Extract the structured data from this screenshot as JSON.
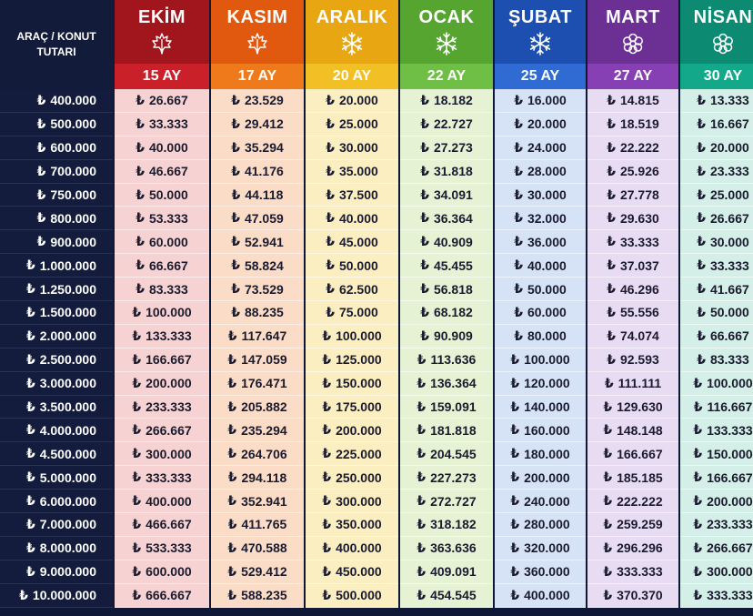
{
  "corner_label": "ARAÇ / KONUT TUTARI",
  "currency": "₺",
  "months": [
    {
      "name": "EKİM",
      "term": "15 AY",
      "icon": "leaf-icon",
      "head": "#a1151c",
      "term_bg": "#c9202a",
      "body": "#f6d3d2"
    },
    {
      "name": "KASIM",
      "term": "17 AY",
      "icon": "leaf-icon",
      "head": "#e0590f",
      "term_bg": "#ef7a1c",
      "body": "#fbdcc6"
    },
    {
      "name": "ARALIK",
      "term": "20 AY",
      "icon": "snowflake-icon",
      "head": "#e7a612",
      "term_bg": "#f2bf24",
      "body": "#fbeec0"
    },
    {
      "name": "OCAK",
      "term": "22 AY",
      "icon": "snowflake-icon",
      "head": "#55a530",
      "term_bg": "#6fbe45",
      "body": "#e6f2d4"
    },
    {
      "name": "ŞUBAT",
      "term": "25 AY",
      "icon": "snowflake-icon",
      "head": "#1d4fb0",
      "term_bg": "#2f6bd2",
      "body": "#d6e3f7"
    },
    {
      "name": "MART",
      "term": "27 AY",
      "icon": "flower-icon",
      "head": "#6c2f93",
      "term_bg": "#8740b3",
      "body": "#e8dcf3"
    },
    {
      "name": "NİSAN",
      "term": "30 AY",
      "icon": "flower-icon",
      "head": "#0d8a72",
      "term_bg": "#14a88b",
      "body": "#d3efe7"
    }
  ],
  "rows": [
    {
      "amount": "400.000",
      "values": [
        "26.667",
        "23.529",
        "20.000",
        "18.182",
        "16.000",
        "14.815",
        "13.333"
      ]
    },
    {
      "amount": "500.000",
      "values": [
        "33.333",
        "29.412",
        "25.000",
        "22.727",
        "20.000",
        "18.519",
        "16.667"
      ]
    },
    {
      "amount": "600.000",
      "values": [
        "40.000",
        "35.294",
        "30.000",
        "27.273",
        "24.000",
        "22.222",
        "20.000"
      ]
    },
    {
      "amount": "700.000",
      "values": [
        "46.667",
        "41.176",
        "35.000",
        "31.818",
        "28.000",
        "25.926",
        "23.333"
      ]
    },
    {
      "amount": "750.000",
      "values": [
        "50.000",
        "44.118",
        "37.500",
        "34.091",
        "30.000",
        "27.778",
        "25.000"
      ]
    },
    {
      "amount": "800.000",
      "values": [
        "53.333",
        "47.059",
        "40.000",
        "36.364",
        "32.000",
        "29.630",
        "26.667"
      ]
    },
    {
      "amount": "900.000",
      "values": [
        "60.000",
        "52.941",
        "45.000",
        "40.909",
        "36.000",
        "33.333",
        "30.000"
      ]
    },
    {
      "amount": "1.000.000",
      "values": [
        "66.667",
        "58.824",
        "50.000",
        "45.455",
        "40.000",
        "37.037",
        "33.333"
      ]
    },
    {
      "amount": "1.250.000",
      "values": [
        "83.333",
        "73.529",
        "62.500",
        "56.818",
        "50.000",
        "46.296",
        "41.667"
      ]
    },
    {
      "amount": "1.500.000",
      "values": [
        "100.000",
        "88.235",
        "75.000",
        "68.182",
        "60.000",
        "55.556",
        "50.000"
      ]
    },
    {
      "amount": "2.000.000",
      "values": [
        "133.333",
        "117.647",
        "100.000",
        "90.909",
        "80.000",
        "74.074",
        "66.667"
      ]
    },
    {
      "amount": "2.500.000",
      "values": [
        "166.667",
        "147.059",
        "125.000",
        "113.636",
        "100.000",
        "92.593",
        "83.333"
      ]
    },
    {
      "amount": "3.000.000",
      "values": [
        "200.000",
        "176.471",
        "150.000",
        "136.364",
        "120.000",
        "111.111",
        "100.000"
      ]
    },
    {
      "amount": "3.500.000",
      "values": [
        "233.333",
        "205.882",
        "175.000",
        "159.091",
        "140.000",
        "129.630",
        "116.667"
      ]
    },
    {
      "amount": "4.000.000",
      "values": [
        "266.667",
        "235.294",
        "200.000",
        "181.818",
        "160.000",
        "148.148",
        "133.333"
      ]
    },
    {
      "amount": "4.500.000",
      "values": [
        "300.000",
        "264.706",
        "225.000",
        "204.545",
        "180.000",
        "166.667",
        "150.000"
      ]
    },
    {
      "amount": "5.000.000",
      "values": [
        "333.333",
        "294.118",
        "250.000",
        "227.273",
        "200.000",
        "185.185",
        "166.667"
      ]
    },
    {
      "amount": "6.000.000",
      "values": [
        "400.000",
        "352.941",
        "300.000",
        "272.727",
        "240.000",
        "222.222",
        "200.000"
      ]
    },
    {
      "amount": "7.000.000",
      "values": [
        "466.667",
        "411.765",
        "350.000",
        "318.182",
        "280.000",
        "259.259",
        "233.333"
      ]
    },
    {
      "amount": "8.000.000",
      "values": [
        "533.333",
        "470.588",
        "400.000",
        "363.636",
        "320.000",
        "296.296",
        "266.667"
      ]
    },
    {
      "amount": "9.000.000",
      "values": [
        "600.000",
        "529.412",
        "450.000",
        "409.091",
        "360.000",
        "333.333",
        "300.000"
      ]
    },
    {
      "amount": "10.000.000",
      "values": [
        "666.667",
        "588.235",
        "500.000",
        "454.545",
        "400.000",
        "370.370",
        "333.333"
      ]
    }
  ]
}
